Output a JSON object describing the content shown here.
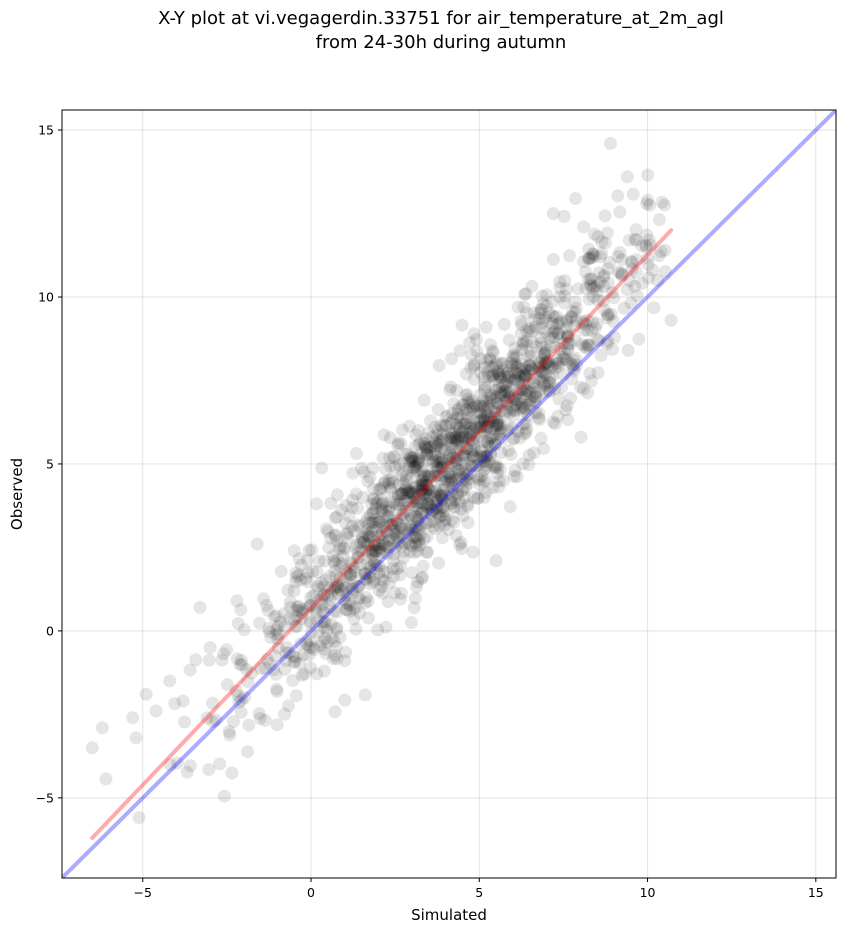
{
  "chart_data": {
    "type": "scatter",
    "title_line1": "X-Y plot at vi.vegagerdin.33751 for air_temperature_at_2m_agl",
    "title_line2": "from 24-30h during autumn",
    "xlabel": "Simulated",
    "ylabel": "Observed",
    "xlim": [
      -7.4,
      15.6
    ],
    "ylim": [
      -7.4,
      15.6
    ],
    "xticks": [
      -5,
      0,
      5,
      10,
      15
    ],
    "yticks": [
      -5,
      0,
      5,
      10,
      15
    ],
    "tick_labels": [
      "−5",
      "0",
      "5",
      "10",
      "15"
    ],
    "grid": true,
    "point_color": "#000000",
    "point_alpha": 0.1,
    "reference_line": {
      "color": "#0000ff",
      "alpha": 0.33,
      "from": [
        -7.4,
        -7.4
      ],
      "to": [
        15.6,
        15.6
      ]
    },
    "fit_line": {
      "color": "#ff0000",
      "alpha": 0.33,
      "from": [
        -6.5,
        -6.2
      ],
      "to": [
        10.7,
        12.0
      ]
    },
    "point_count": 1500,
    "points_sample": [
      [
        -6.5,
        -3.5
      ],
      [
        -6.2,
        -2.9
      ],
      [
        -5.3,
        -2.6
      ],
      [
        -5.2,
        -3.2
      ],
      [
        -4.9,
        -1.9
      ],
      [
        -4.6,
        -2.4
      ],
      [
        -4.2,
        -1.5
      ],
      [
        -3.8,
        -2.1
      ],
      [
        -3.3,
        0.7
      ],
      [
        -3.0,
        -0.5
      ],
      [
        -2.2,
        0.9
      ],
      [
        -1.6,
        2.6
      ],
      [
        -0.5,
        2.4
      ],
      [
        0.2,
        0.3
      ],
      [
        0.6,
        0.2
      ],
      [
        1.5,
        2.4
      ],
      [
        2.0,
        2.6
      ],
      [
        2.9,
        3.0
      ],
      [
        3.3,
        4.5
      ],
      [
        3.9,
        3.7
      ],
      [
        4.3,
        5.1
      ],
      [
        4.6,
        4.3
      ],
      [
        4.8,
        6.5
      ],
      [
        5.2,
        4.5
      ],
      [
        5.5,
        2.1
      ],
      [
        6.3,
        5.0
      ],
      [
        6.9,
        9.8
      ],
      [
        7.2,
        12.5
      ],
      [
        8.1,
        12.1
      ],
      [
        8.9,
        14.6
      ],
      [
        9.4,
        13.6
      ],
      [
        10.0,
        12.9
      ],
      [
        10.3,
        10.5
      ],
      [
        10.7,
        9.3
      ]
    ],
    "fit_params": {
      "slope": 1.06,
      "intercept": 0.7,
      "noise_sd": 1.15,
      "x_range": [
        -6.5,
        10.7
      ],
      "x_center": 4.0,
      "x_sd": 2.9
    }
  }
}
